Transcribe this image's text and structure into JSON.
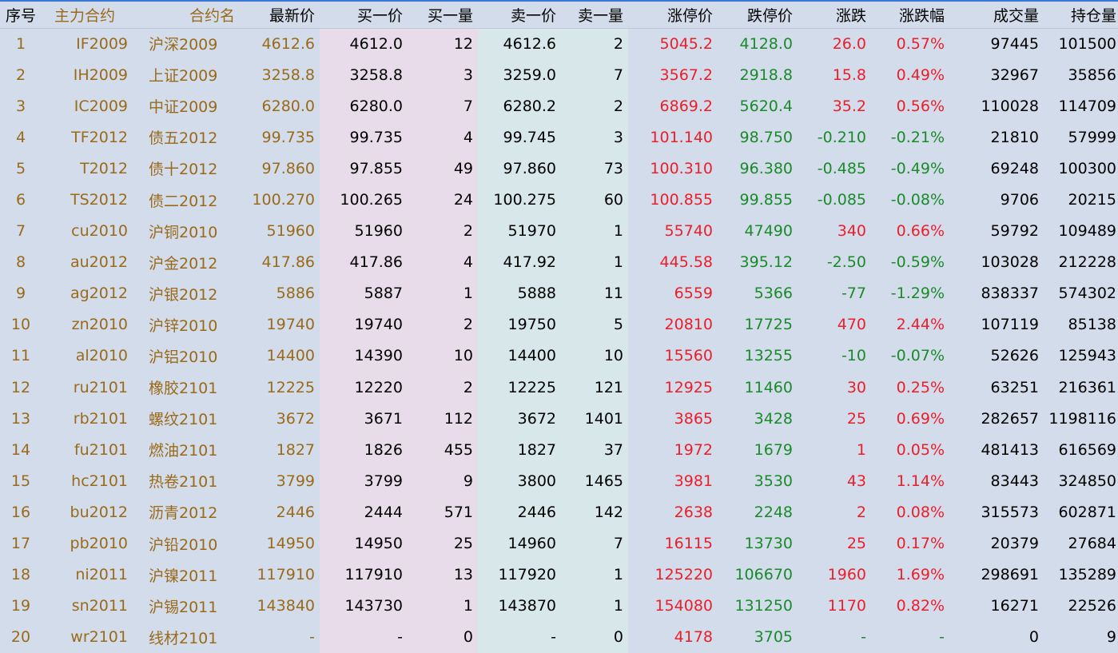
{
  "columns": [
    "序号",
    "主力合约",
    "合约名",
    "最新价",
    "买一价",
    "买一量",
    "卖一价",
    "卖一量",
    "涨停价",
    "跌停价",
    "涨跌",
    "涨跌幅",
    "成交量",
    "持仓量"
  ],
  "rows": [
    {
      "idx": "1",
      "code": "IF2009",
      "name": "沪深2009",
      "last": "4612.6",
      "bid": "4612.0",
      "bidvol": "12",
      "ask": "4612.6",
      "askvol": "2",
      "limup": "5045.2",
      "limdown": "4128.0",
      "chg": "26.0",
      "pct": "0.57%",
      "vol": "97445",
      "oi": "101500",
      "dir": "up"
    },
    {
      "idx": "2",
      "code": "IH2009",
      "name": "上证2009",
      "last": "3258.8",
      "bid": "3258.8",
      "bidvol": "3",
      "ask": "3259.0",
      "askvol": "7",
      "limup": "3567.2",
      "limdown": "2918.8",
      "chg": "15.8",
      "pct": "0.49%",
      "vol": "32967",
      "oi": "35856",
      "dir": "up"
    },
    {
      "idx": "3",
      "code": "IC2009",
      "name": "中证2009",
      "last": "6280.0",
      "bid": "6280.0",
      "bidvol": "7",
      "ask": "6280.2",
      "askvol": "2",
      "limup": "6869.2",
      "limdown": "5620.4",
      "chg": "35.2",
      "pct": "0.56%",
      "vol": "110028",
      "oi": "114709",
      "dir": "up"
    },
    {
      "idx": "4",
      "code": "TF2012",
      "name": "债五2012",
      "last": "99.735",
      "bid": "99.735",
      "bidvol": "4",
      "ask": "99.745",
      "askvol": "3",
      "limup": "101.140",
      "limdown": "98.750",
      "chg": "-0.210",
      "pct": "-0.21%",
      "vol": "21810",
      "oi": "57999",
      "dir": "down"
    },
    {
      "idx": "5",
      "code": "T2012",
      "name": "债十2012",
      "last": "97.860",
      "bid": "97.855",
      "bidvol": "49",
      "ask": "97.860",
      "askvol": "73",
      "limup": "100.310",
      "limdown": "96.380",
      "chg": "-0.485",
      "pct": "-0.49%",
      "vol": "69248",
      "oi": "100300",
      "dir": "down"
    },
    {
      "idx": "6",
      "code": "TS2012",
      "name": "债二2012",
      "last": "100.270",
      "bid": "100.265",
      "bidvol": "24",
      "ask": "100.275",
      "askvol": "60",
      "limup": "100.855",
      "limdown": "99.855",
      "chg": "-0.085",
      "pct": "-0.08%",
      "vol": "9706",
      "oi": "20215",
      "dir": "down"
    },
    {
      "idx": "7",
      "code": "cu2010",
      "name": "沪铜2010",
      "last": "51960",
      "bid": "51960",
      "bidvol": "2",
      "ask": "51970",
      "askvol": "1",
      "limup": "55740",
      "limdown": "47490",
      "chg": "340",
      "pct": "0.66%",
      "vol": "59792",
      "oi": "109489",
      "dir": "up"
    },
    {
      "idx": "8",
      "code": "au2012",
      "name": "沪金2012",
      "last": "417.86",
      "bid": "417.86",
      "bidvol": "4",
      "ask": "417.92",
      "askvol": "1",
      "limup": "445.58",
      "limdown": "395.12",
      "chg": "-2.50",
      "pct": "-0.59%",
      "vol": "103028",
      "oi": "212228",
      "dir": "down"
    },
    {
      "idx": "9",
      "code": "ag2012",
      "name": "沪银2012",
      "last": "5886",
      "bid": "5887",
      "bidvol": "1",
      "ask": "5888",
      "askvol": "11",
      "limup": "6559",
      "limdown": "5366",
      "chg": "-77",
      "pct": "-1.29%",
      "vol": "838337",
      "oi": "574302",
      "dir": "down"
    },
    {
      "idx": "10",
      "code": "zn2010",
      "name": "沪锌2010",
      "last": "19740",
      "bid": "19740",
      "bidvol": "2",
      "ask": "19750",
      "askvol": "5",
      "limup": "20810",
      "limdown": "17725",
      "chg": "470",
      "pct": "2.44%",
      "vol": "107119",
      "oi": "85138",
      "dir": "up"
    },
    {
      "idx": "11",
      "code": "al2010",
      "name": "沪铝2010",
      "last": "14400",
      "bid": "14390",
      "bidvol": "10",
      "ask": "14400",
      "askvol": "10",
      "limup": "15560",
      "limdown": "13255",
      "chg": "-10",
      "pct": "-0.07%",
      "vol": "52626",
      "oi": "125943",
      "dir": "down"
    },
    {
      "idx": "12",
      "code": "ru2101",
      "name": "橡胶2101",
      "last": "12225",
      "bid": "12220",
      "bidvol": "2",
      "ask": "12225",
      "askvol": "121",
      "limup": "12925",
      "limdown": "11460",
      "chg": "30",
      "pct": "0.25%",
      "vol": "63251",
      "oi": "216361",
      "dir": "up"
    },
    {
      "idx": "13",
      "code": "rb2101",
      "name": "螺纹2101",
      "last": "3672",
      "bid": "3671",
      "bidvol": "112",
      "ask": "3672",
      "askvol": "1401",
      "limup": "3865",
      "limdown": "3428",
      "chg": "25",
      "pct": "0.69%",
      "vol": "282657",
      "oi": "1198116",
      "dir": "up"
    },
    {
      "idx": "14",
      "code": "fu2101",
      "name": "燃油2101",
      "last": "1827",
      "bid": "1826",
      "bidvol": "455",
      "ask": "1827",
      "askvol": "37",
      "limup": "1972",
      "limdown": "1679",
      "chg": "1",
      "pct": "0.05%",
      "vol": "481413",
      "oi": "616569",
      "dir": "up"
    },
    {
      "idx": "15",
      "code": "hc2101",
      "name": "热卷2101",
      "last": "3799",
      "bid": "3799",
      "bidvol": "9",
      "ask": "3800",
      "askvol": "1465",
      "limup": "3981",
      "limdown": "3530",
      "chg": "43",
      "pct": "1.14%",
      "vol": "83443",
      "oi": "324850",
      "dir": "up"
    },
    {
      "idx": "16",
      "code": "bu2012",
      "name": "沥青2012",
      "last": "2446",
      "bid": "2444",
      "bidvol": "571",
      "ask": "2446",
      "askvol": "142",
      "limup": "2638",
      "limdown": "2248",
      "chg": "2",
      "pct": "0.08%",
      "vol": "315573",
      "oi": "602871",
      "dir": "up"
    },
    {
      "idx": "17",
      "code": "pb2010",
      "name": "沪铅2010",
      "last": "14950",
      "bid": "14950",
      "bidvol": "25",
      "ask": "14960",
      "askvol": "7",
      "limup": "16115",
      "limdown": "13730",
      "chg": "25",
      "pct": "0.17%",
      "vol": "20379",
      "oi": "27684",
      "dir": "up"
    },
    {
      "idx": "18",
      "code": "ni2011",
      "name": "沪镍2011",
      "last": "117910",
      "bid": "117910",
      "bidvol": "13",
      "ask": "117920",
      "askvol": "1",
      "limup": "125220",
      "limdown": "106670",
      "chg": "1960",
      "pct": "1.69%",
      "vol": "298691",
      "oi": "135289",
      "dir": "up"
    },
    {
      "idx": "19",
      "code": "sn2011",
      "name": "沪锡2011",
      "last": "143840",
      "bid": "143730",
      "bidvol": "1",
      "ask": "143870",
      "askvol": "1",
      "limup": "154080",
      "limdown": "131250",
      "chg": "1170",
      "pct": "0.82%",
      "vol": "16271",
      "oi": "22526",
      "dir": "up"
    },
    {
      "idx": "20",
      "code": "wr2101",
      "name": "线材2101",
      "last": "-",
      "bid": "-",
      "bidvol": "0",
      "ask": "-",
      "askvol": "0",
      "limup": "4178",
      "limdown": "3705",
      "chg": "-",
      "pct": "-",
      "vol": "0",
      "oi": "9",
      "dir": "flat"
    }
  ],
  "colors": {
    "up": "#ec1e2a",
    "down": "#1a8a2a",
    "goods": "#9a6a1a",
    "bid_bg": "#e8dceb",
    "ask_bg": "#d8e7ea",
    "grid_bg": "#d3dcea"
  }
}
